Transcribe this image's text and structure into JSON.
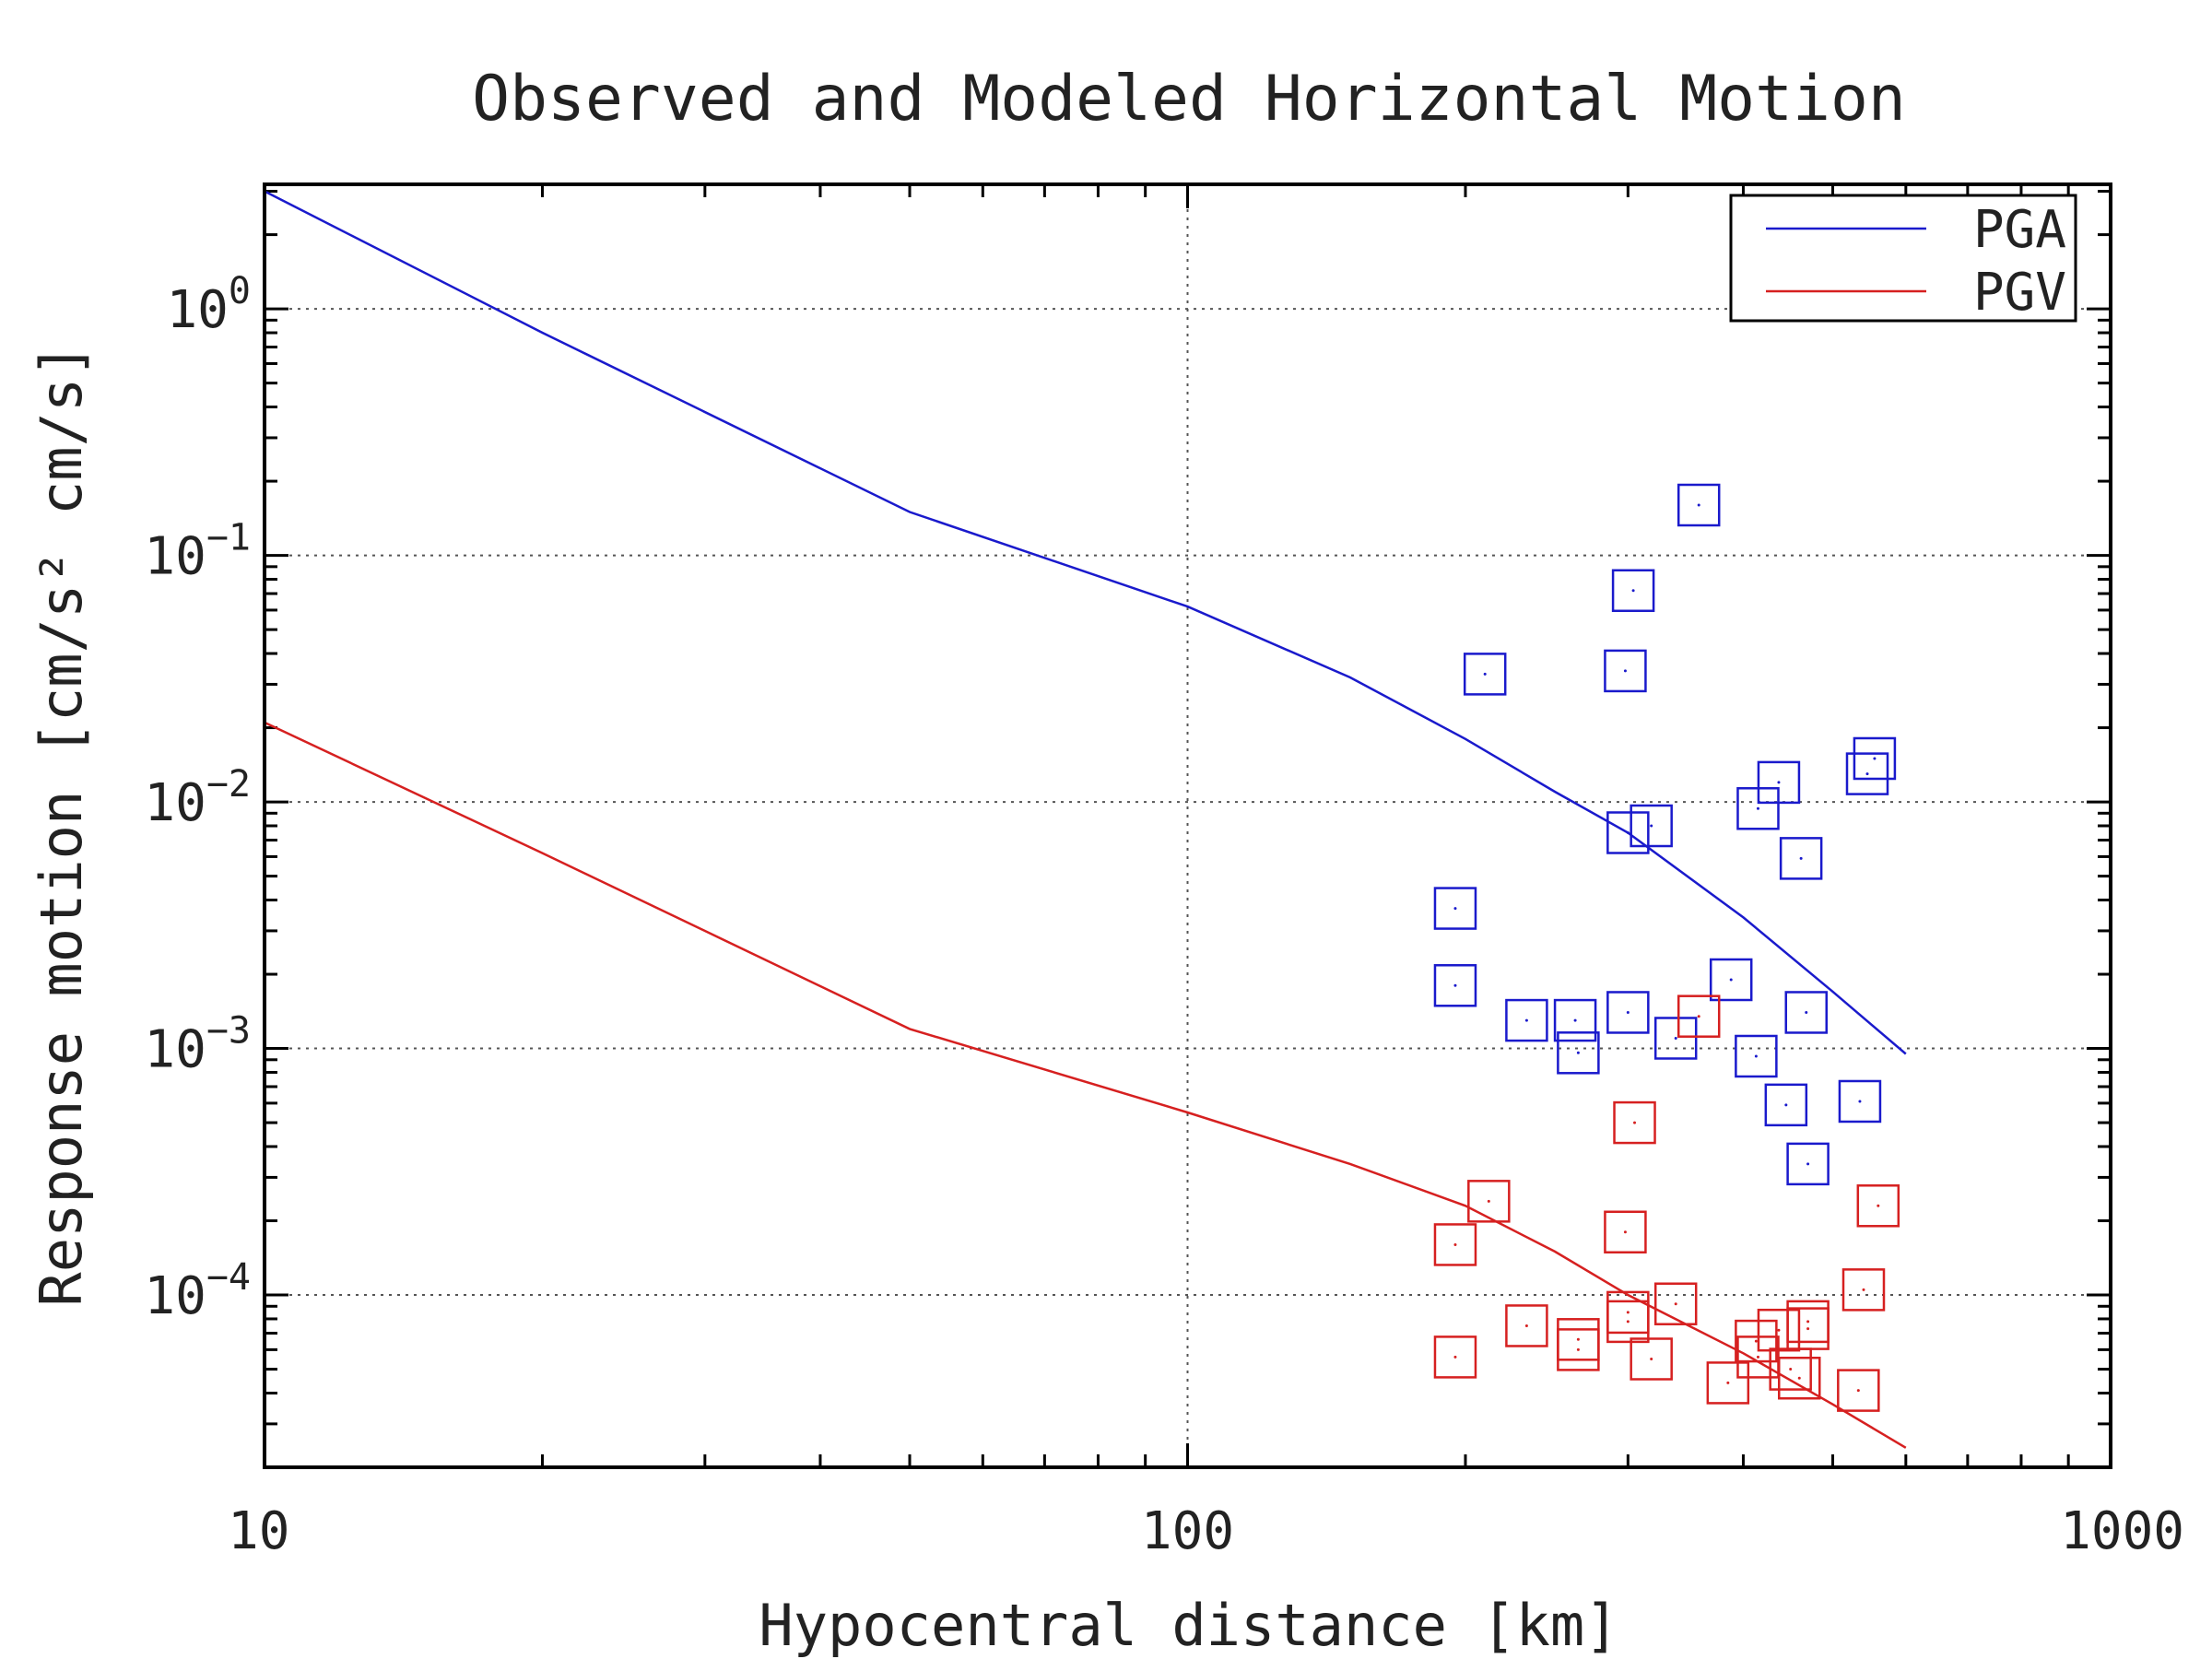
{
  "chart_data": {
    "type": "scatter",
    "title": "Observed and Modeled Horizontal Motion",
    "xlabel": "Hypocentral distance [km]",
    "ylabel": "Response motion [cm/s²  cm/s]",
    "x_scale": "log",
    "y_scale": "log",
    "xlim": [
      10,
      1000
    ],
    "ylim": [
      2e-05,
      3.2
    ],
    "x_ticks": [
      {
        "value": 10,
        "label": "10"
      },
      {
        "value": 100,
        "label": "100"
      },
      {
        "value": 1000,
        "label": "1000"
      }
    ],
    "y_ticks": [
      {
        "value": 1,
        "base": "10",
        "exp": "0"
      },
      {
        "value": 0.1,
        "base": "10",
        "exp": "−1"
      },
      {
        "value": 0.01,
        "base": "10",
        "exp": "−2"
      },
      {
        "value": 0.001,
        "base": "10",
        "exp": "−3"
      },
      {
        "value": 0.0001,
        "base": "10",
        "exp": "−4"
      }
    ],
    "grid": "major",
    "legend_position": "top-right",
    "colors": {
      "PGA": "#1a1acc",
      "PGV": "#d62020"
    },
    "model_lines": [
      {
        "name": "PGA",
        "color": "#1a1acc",
        "x": [
          10,
          20,
          50,
          100,
          150,
          200,
          250,
          300,
          400,
          500,
          600
        ],
        "y": [
          3.0,
          0.8,
          0.15,
          0.062,
          0.032,
          0.018,
          0.011,
          0.0075,
          0.0034,
          0.0017,
          0.00095
        ]
      },
      {
        "name": "PGV",
        "color": "#d62020",
        "x": [
          10,
          20,
          50,
          100,
          150,
          200,
          250,
          300,
          400,
          500,
          600
        ],
        "y": [
          0.021,
          0.0062,
          0.0012,
          0.00055,
          0.00034,
          0.00023,
          0.00015,
          0.0001,
          5.8e-05,
          3.6e-05,
          2.4e-05
        ]
      }
    ],
    "observed": [
      {
        "name": "PGA",
        "color": "#1a1acc",
        "points": [
          [
            358,
            0.16
          ],
          [
            304,
            0.072
          ],
          [
            298,
            0.034
          ],
          [
            210,
            0.033
          ],
          [
            555,
            0.015
          ],
          [
            545,
            0.013
          ],
          [
            437,
            0.012
          ],
          [
            415,
            0.0094
          ],
          [
            318,
            0.008
          ],
          [
            300,
            0.0075
          ],
          [
            462,
            0.0059
          ],
          [
            195,
            0.0037
          ],
          [
            195,
            0.0018
          ],
          [
            388,
            0.0019
          ],
          [
            300,
            0.0014
          ],
          [
            468,
            0.0014
          ],
          [
            233,
            0.0013
          ],
          [
            263,
            0.0013
          ],
          [
            338,
            0.0011
          ],
          [
            413,
            0.00093
          ],
          [
            265,
            0.00096
          ],
          [
            445,
            0.00059
          ],
          [
            535,
            0.00061
          ],
          [
            470,
            0.00034
          ]
        ]
      },
      {
        "name": "PGV",
        "color": "#d62020",
        "points": [
          [
            358,
            0.00135
          ],
          [
            305,
            0.0005
          ],
          [
            212,
            0.00024
          ],
          [
            560,
            0.00023
          ],
          [
            195,
            0.00016
          ],
          [
            298,
            0.00018
          ],
          [
            540,
            0.000105
          ],
          [
            338,
            9.2e-05
          ],
          [
            300,
            8.5e-05
          ],
          [
            300,
            7.8e-05
          ],
          [
            233,
            7.5e-05
          ],
          [
            470,
            7.8e-05
          ],
          [
            470,
            7.3e-05
          ],
          [
            437,
            7.2e-05
          ],
          [
            413,
            6.5e-05
          ],
          [
            265,
            6.6e-05
          ],
          [
            265,
            6e-05
          ],
          [
            318,
            5.5e-05
          ],
          [
            195,
            5.6e-05
          ],
          [
            415,
            5.6e-05
          ],
          [
            450,
            5e-05
          ],
          [
            460,
            4.6e-05
          ],
          [
            385,
            4.4e-05
          ],
          [
            533,
            4.1e-05
          ]
        ]
      }
    ]
  }
}
